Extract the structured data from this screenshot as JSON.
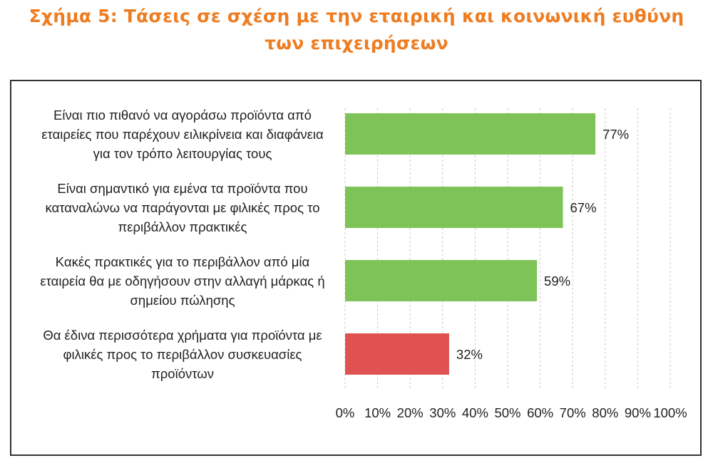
{
  "figure": {
    "title_line1": "Σχήμα 5: Τάσεις σε σχέση με την εταιρική και κοινωνική ευθύνη",
    "title_line2": "των επιχειρήσεων",
    "title_color": "#ee7d22"
  },
  "chart_data": {
    "type": "bar",
    "orientation": "horizontal",
    "categories": [
      "Είναι πιο πιθανό να αγοράσω προϊόντα από εταιρείες που παρέχουν ειλικρίνεια και διαφάνεια για τον τρόπο λειτουργίας τους",
      "Είναι σημαντικό για εμένα τα προϊόντα που καταναλώνω να παράγονται με φιλικές προς το περιβάλλον πρακτικές",
      "Κακές πρακτικές για το περιβάλλον από μία εταιρεία θα με οδηγήσουν στην αλλαγή μάρκας ή σημείου πώλησης",
      "Θα έδινα περισσότερα χρήματα για προϊόντα με φιλικές προς το περιβάλλον συσκευασίες προϊόντων"
    ],
    "category_lines": [
      [
        "Είναι πιο πιθανό να αγοράσω προϊόντα από",
        "εταιρείες που παρέχουν ειλικρίνεια και διαφάνεια",
        "για τον τρόπο λειτουργίας τους"
      ],
      [
        "Είναι σημαντικό για εμένα τα προϊόντα που",
        "καταναλώνω να παράγονται με φιλικές προς το",
        "περιβάλλον πρακτικές"
      ],
      [
        "Κακές πρακτικές για το περιβάλλον από μία",
        "εταιρεία θα με οδηγήσουν στην αλλαγή μάρκας ή",
        "σημείου πώλησης"
      ],
      [
        "Θα έδινα περισσότερα χρήματα για προϊόντα με",
        "φιλικές προς το περιβάλλον συσκευασίες",
        "προϊόντων"
      ]
    ],
    "values": [
      77,
      67,
      59,
      32
    ],
    "value_labels": [
      "77%",
      "67%",
      "59%",
      "32%"
    ],
    "bar_colors": [
      "#7ec357",
      "#7ec357",
      "#7ec357",
      "#e05252"
    ],
    "xlim": [
      0,
      100
    ],
    "x_ticks": [
      0,
      10,
      20,
      30,
      40,
      50,
      60,
      70,
      80,
      90,
      100
    ],
    "x_tick_labels": [
      "0%",
      "10%",
      "20%",
      "30%",
      "40%",
      "50%",
      "60%",
      "70%",
      "80%",
      "90%",
      "100%"
    ],
    "grid": "vertical dashed",
    "legend": "none",
    "xlabel": "",
    "ylabel": ""
  }
}
